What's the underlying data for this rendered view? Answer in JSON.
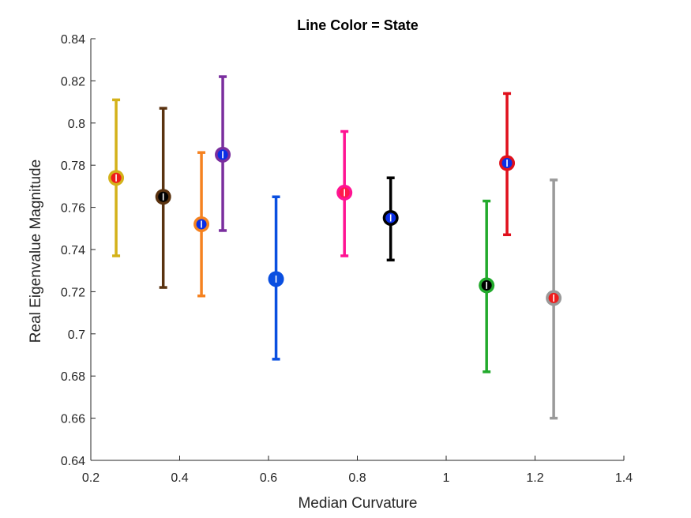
{
  "chart_data": {
    "type": "scatter",
    "title": "Line Color = State",
    "xlabel": "Median Curvature",
    "ylabel": "Real Eigenvalue Magnitude",
    "xlim": [
      0.2,
      1.4
    ],
    "ylim": [
      0.64,
      0.84
    ],
    "xticks": [
      "0.2",
      "0.4",
      "0.6",
      "0.8",
      "1",
      "1.2",
      "1.4"
    ],
    "yticks": [
      "0.64",
      "0.66",
      "0.68",
      "0.7",
      "0.72",
      "0.74",
      "0.76",
      "0.78",
      "0.8",
      "0.82",
      "0.84"
    ],
    "grid": false,
    "points": [
      {
        "x": 0.257,
        "y": 0.774,
        "lower": 0.737,
        "upper": 0.811,
        "line_color": "#d4b21a",
        "marker_color": "#ee1c1c"
      },
      {
        "x": 0.363,
        "y": 0.765,
        "lower": 0.722,
        "upper": 0.807,
        "line_color": "#5a3310",
        "marker_color": "#000000"
      },
      {
        "x": 0.449,
        "y": 0.752,
        "lower": 0.718,
        "upper": 0.786,
        "line_color": "#f58220",
        "marker_color": "#0a2ee6"
      },
      {
        "x": 0.497,
        "y": 0.785,
        "lower": 0.749,
        "upper": 0.822,
        "line_color": "#7a2e9e",
        "marker_color": "#0a2ee6"
      },
      {
        "x": 0.617,
        "y": 0.726,
        "lower": 0.688,
        "upper": 0.765,
        "line_color": "#0a4fe0",
        "marker_color": "#0a4fe0"
      },
      {
        "x": 0.771,
        "y": 0.767,
        "lower": 0.737,
        "upper": 0.796,
        "line_color": "#ff1493",
        "marker_color": "#ff1a4a"
      },
      {
        "x": 0.875,
        "y": 0.755,
        "lower": 0.735,
        "upper": 0.774,
        "line_color": "#000000",
        "marker_color": "#0a2ee6"
      },
      {
        "x": 1.091,
        "y": 0.723,
        "lower": 0.682,
        "upper": 0.763,
        "line_color": "#22aa2c",
        "marker_color": "#000000"
      },
      {
        "x": 1.137,
        "y": 0.781,
        "lower": 0.747,
        "upper": 0.814,
        "line_color": "#e0101c",
        "marker_color": "#0a2ee6"
      },
      {
        "x": 1.242,
        "y": 0.717,
        "lower": 0.66,
        "upper": 0.773,
        "line_color": "#9a9a9a",
        "marker_color": "#ee1c1c"
      }
    ]
  }
}
